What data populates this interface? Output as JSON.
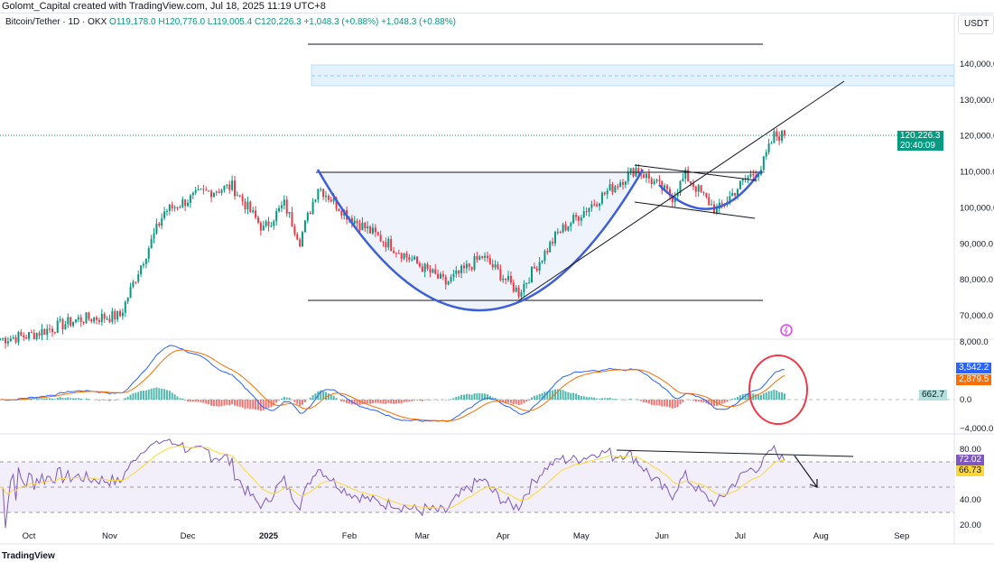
{
  "header": {
    "credit": "Golomt_Capital created with TradingView.com, Jul 18, 2025 11:19 UTC+8"
  },
  "symbol": {
    "name": "Bitcoin/Tether · 1D · OKX",
    "open": "O119,178.0",
    "high": "H120,776.0",
    "low": "L119,005.4",
    "close": "C120,226.3",
    "change": "+1,048.3 (+0.88%)",
    "change2": "+1,048.3 (+0.88%)"
  },
  "currency": "USDT",
  "price_tag": {
    "price": "120,226.3",
    "countdown": "20:40:09"
  },
  "macd_tags": {
    "macd": "3,542.2",
    "signal": "2,879.5",
    "hist": "662.7"
  },
  "rsi_tags": {
    "rsi": "72.02",
    "ma": "66.73"
  },
  "logo": "TradingView",
  "colors": {
    "up": "#089981",
    "down": "#f23645",
    "macd": "#2962ff",
    "signal": "#ff6d00",
    "rsi": "#7e57c2",
    "rsima": "#fdd835",
    "drawing": "#3d5fd9"
  },
  "chart_data": {
    "type": "candlestick",
    "title": "Bitcoin/Tether 1D OKX",
    "y_ticks": [
      "140,000.0",
      "130,000.0",
      "120,000.0",
      "110,000.0",
      "100,000.0",
      "90,000.0",
      "80,000.0",
      "70,000.0"
    ],
    "y_tick_values": [
      140000,
      130000,
      120000,
      110000,
      100000,
      90000,
      80000,
      70000
    ],
    "macd_ticks": [
      "8,000.0",
      "0.0",
      "−4,000.0"
    ],
    "rsi_ticks": [
      "80.00",
      "40.00",
      "20.00"
    ],
    "x_ticks": [
      "Oct",
      "Nov",
      "Dec",
      "2025",
      "Feb",
      "Mar",
      "Apr",
      "May",
      "Jun",
      "Jul",
      "Aug",
      "Sep"
    ],
    "x_tick_days": [
      0,
      31,
      61,
      92,
      123,
      151,
      182,
      212,
      243,
      273,
      304,
      335
    ],
    "price_path_day_close": [
      [
        -11,
        63500
      ],
      [
        0,
        64500
      ],
      [
        19,
        69000
      ],
      [
        35,
        70000
      ],
      [
        42,
        82500
      ],
      [
        52,
        99000
      ],
      [
        66,
        104000
      ],
      [
        78,
        106000
      ],
      [
        90,
        94000
      ],
      [
        98,
        101000
      ],
      [
        104,
        91000
      ],
      [
        111,
        106000
      ],
      [
        123,
        97500
      ],
      [
        146,
        86000
      ],
      [
        160,
        79000
      ],
      [
        174,
        86500
      ],
      [
        188,
        76500
      ],
      [
        203,
        93000
      ],
      [
        221,
        104000
      ],
      [
        233,
        111000
      ],
      [
        247,
        103000
      ],
      [
        252,
        109000
      ],
      [
        264,
        99000
      ],
      [
        275,
        108000
      ],
      [
        281,
        111000
      ],
      [
        286,
        120000
      ],
      [
        290,
        120226
      ]
    ],
    "last_price": 120226.3,
    "indicators": [
      "MACD",
      "RSI 14 with MA"
    ]
  }
}
